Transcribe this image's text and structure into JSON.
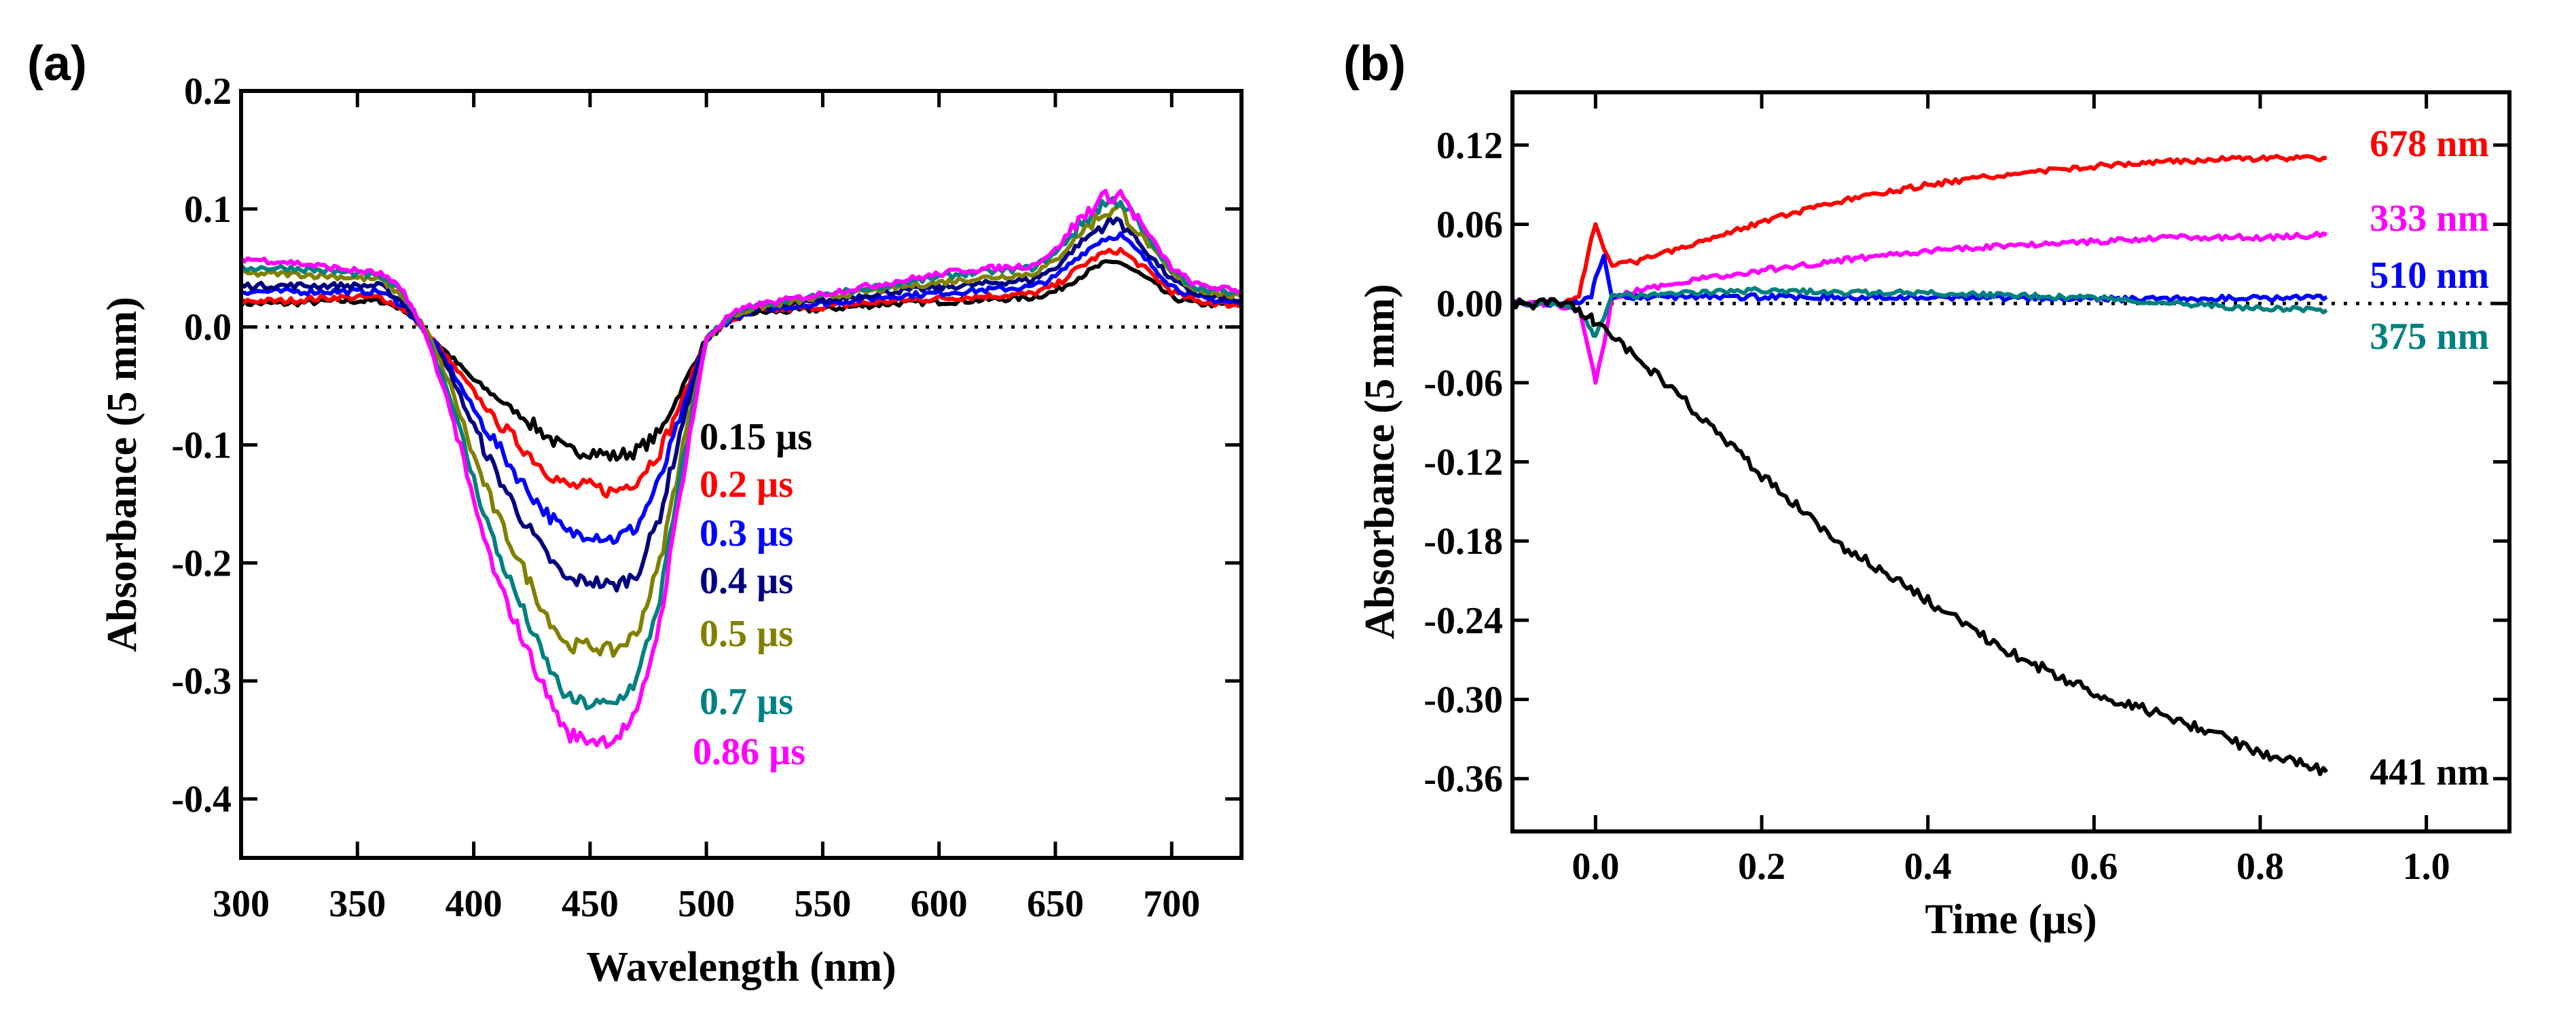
{
  "chart_data": [
    {
      "panel_label": "(a)",
      "type": "line",
      "xlabel": "Wavelength (nm)",
      "ylabel": "Absorbance (5 mm)",
      "xlim": [
        300,
        730
      ],
      "ylim": [
        -0.45,
        0.2
      ],
      "xticks": [
        300,
        350,
        400,
        450,
        500,
        550,
        600,
        650,
        700
      ],
      "xtick_labels": [
        "300",
        "350",
        "400",
        "450",
        "500",
        "550",
        "600",
        "650",
        "700"
      ],
      "yticks": [
        0.2,
        0.1,
        0.0,
        -0.1,
        -0.2,
        -0.3,
        -0.4
      ],
      "ytick_labels": [
        "0.2",
        "0.1",
        "0.0",
        "-0.1",
        "-0.2",
        "-0.3",
        "-0.4"
      ],
      "zero_line": "dotted",
      "grid": false,
      "x": [
        300,
        320,
        340,
        360,
        370,
        380,
        390,
        400,
        410,
        420,
        430,
        440,
        450,
        460,
        470,
        480,
        490,
        500,
        510,
        520,
        550,
        580,
        610,
        640,
        650,
        660,
        670,
        678,
        690,
        700,
        710,
        730
      ],
      "series": [
        {
          "name": "0.15 µs",
          "color": "#000000",
          "values": [
            0.02,
            0.02,
            0.022,
            0.022,
            0.015,
            -0.005,
            -0.025,
            -0.045,
            -0.06,
            -0.075,
            -0.09,
            -0.105,
            -0.105,
            -0.11,
            -0.105,
            -0.09,
            -0.05,
            -0.01,
            0.005,
            0.012,
            0.015,
            0.02,
            0.022,
            0.025,
            0.03,
            0.042,
            0.053,
            0.055,
            0.04,
            0.025,
            0.02,
            0.018
          ]
        },
        {
          "name": "0.2 µs",
          "color": "#ff0000",
          "values": [
            0.022,
            0.022,
            0.025,
            0.025,
            0.015,
            -0.005,
            -0.03,
            -0.055,
            -0.08,
            -0.1,
            -0.12,
            -0.135,
            -0.135,
            -0.14,
            -0.13,
            -0.105,
            -0.06,
            -0.01,
            0.005,
            0.013,
            0.017,
            0.022,
            0.025,
            0.028,
            0.035,
            0.05,
            0.062,
            0.065,
            0.047,
            0.03,
            0.022,
            0.018
          ]
        },
        {
          "name": "0.3 µs",
          "color": "#0000ff",
          "values": [
            0.03,
            0.03,
            0.03,
            0.03,
            0.018,
            -0.005,
            -0.035,
            -0.07,
            -0.1,
            -0.13,
            -0.155,
            -0.175,
            -0.175,
            -0.18,
            -0.17,
            -0.13,
            -0.07,
            -0.01,
            0.006,
            0.014,
            0.02,
            0.026,
            0.03,
            0.034,
            0.042,
            0.06,
            0.074,
            0.078,
            0.055,
            0.035,
            0.025,
            0.02
          ]
        },
        {
          "name": "0.4 µs",
          "color": "#000080",
          "values": [
            0.035,
            0.035,
            0.035,
            0.035,
            0.02,
            -0.005,
            -0.04,
            -0.085,
            -0.125,
            -0.16,
            -0.19,
            -0.215,
            -0.215,
            -0.22,
            -0.21,
            -0.16,
            -0.08,
            -0.01,
            0.007,
            0.015,
            0.022,
            0.03,
            0.035,
            0.04,
            0.05,
            0.07,
            0.086,
            0.09,
            0.062,
            0.04,
            0.028,
            0.022
          ]
        },
        {
          "name": "0.5 µs",
          "color": "#808000",
          "values": [
            0.045,
            0.045,
            0.043,
            0.04,
            0.025,
            -0.005,
            -0.05,
            -0.11,
            -0.16,
            -0.2,
            -0.24,
            -0.27,
            -0.27,
            -0.275,
            -0.26,
            -0.2,
            -0.1,
            -0.01,
            0.008,
            0.016,
            0.025,
            0.033,
            0.04,
            0.045,
            0.056,
            0.078,
            0.096,
            0.1,
            0.07,
            0.045,
            0.032,
            0.025
          ]
        },
        {
          "name": "0.7 µs",
          "color": "#008080",
          "values": [
            0.05,
            0.05,
            0.047,
            0.043,
            0.028,
            -0.008,
            -0.06,
            -0.13,
            -0.19,
            -0.235,
            -0.28,
            -0.315,
            -0.32,
            -0.32,
            -0.3,
            -0.23,
            -0.115,
            -0.01,
            0.009,
            0.017,
            0.027,
            0.036,
            0.045,
            0.05,
            0.062,
            0.085,
            0.104,
            0.108,
            0.075,
            0.048,
            0.034,
            0.027
          ]
        },
        {
          "name": "0.86 µs",
          "color": "#ff00ff",
          "values": [
            0.058,
            0.055,
            0.05,
            0.045,
            0.03,
            -0.01,
            -0.07,
            -0.15,
            -0.215,
            -0.26,
            -0.305,
            -0.345,
            -0.35,
            -0.35,
            -0.33,
            -0.25,
            -0.125,
            -0.01,
            0.01,
            0.018,
            0.028,
            0.038,
            0.048,
            0.052,
            0.065,
            0.09,
            0.109,
            0.113,
            0.078,
            0.05,
            0.036,
            0.03
          ]
        }
      ]
    },
    {
      "panel_label": "(b)",
      "type": "line",
      "xlabel": "Time (µs)",
      "ylabel": "Absorbance (5 mm)",
      "xlim": [
        -0.1,
        1.1
      ],
      "ylim": [
        -0.4,
        0.16
      ],
      "xticks": [
        0.0,
        0.2,
        0.4,
        0.6,
        0.8,
        1.0
      ],
      "xtick_labels": [
        "0.0",
        "0.2",
        "0.4",
        "0.6",
        "0.8",
        "1.0"
      ],
      "yticks": [
        0.12,
        0.06,
        0.0,
        -0.06,
        -0.12,
        -0.18,
        -0.24,
        -0.3,
        -0.36
      ],
      "ytick_labels": [
        "0.12",
        "0.06",
        "0.00",
        "-0.06",
        "-0.12",
        "-0.18",
        "-0.24",
        "-0.30",
        "-0.36"
      ],
      "zero_line": "dotted",
      "grid": false,
      "x": [
        -0.1,
        -0.05,
        -0.02,
        -0.005,
        0.0,
        0.01,
        0.02,
        0.05,
        0.1,
        0.2,
        0.3,
        0.4,
        0.5,
        0.6,
        0.7,
        0.8,
        0.88
      ],
      "series": [
        {
          "name": "678 nm",
          "color": "#ff0000",
          "values": [
            0,
            0,
            0.005,
            0.05,
            0.062,
            0.04,
            0.028,
            0.032,
            0.042,
            0.062,
            0.078,
            0.09,
            0.098,
            0.104,
            0.108,
            0.11,
            0.11
          ]
        },
        {
          "name": "333 nm",
          "color": "#ff00ff",
          "values": [
            0,
            0,
            -0.005,
            -0.045,
            -0.06,
            -0.03,
            0.005,
            0.01,
            0.016,
            0.025,
            0.033,
            0.04,
            0.044,
            0.047,
            0.05,
            0.05,
            0.052
          ]
        },
        {
          "name": "510 nm",
          "color": "#0000ff",
          "values": [
            0,
            0,
            0,
            0.005,
            0.02,
            0.035,
            0.005,
            0.005,
            0.005,
            0.005,
            0.005,
            0.005,
            0.004,
            0.003,
            0.004,
            0.004,
            0.005
          ]
        },
        {
          "name": "375 nm",
          "color": "#008080",
          "values": [
            0,
            0,
            -0.005,
            -0.02,
            -0.025,
            -0.01,
            0.005,
            0.006,
            0.008,
            0.01,
            0.008,
            0.008,
            0.006,
            0.004,
            0.0,
            -0.004,
            -0.005
          ]
        },
        {
          "name": "441 nm",
          "color": "#000000",
          "values": [
            0,
            0,
            -0.005,
            -0.01,
            -0.015,
            -0.02,
            -0.025,
            -0.04,
            -0.07,
            -0.13,
            -0.185,
            -0.225,
            -0.265,
            -0.295,
            -0.315,
            -0.34,
            -0.355
          ]
        }
      ]
    }
  ]
}
